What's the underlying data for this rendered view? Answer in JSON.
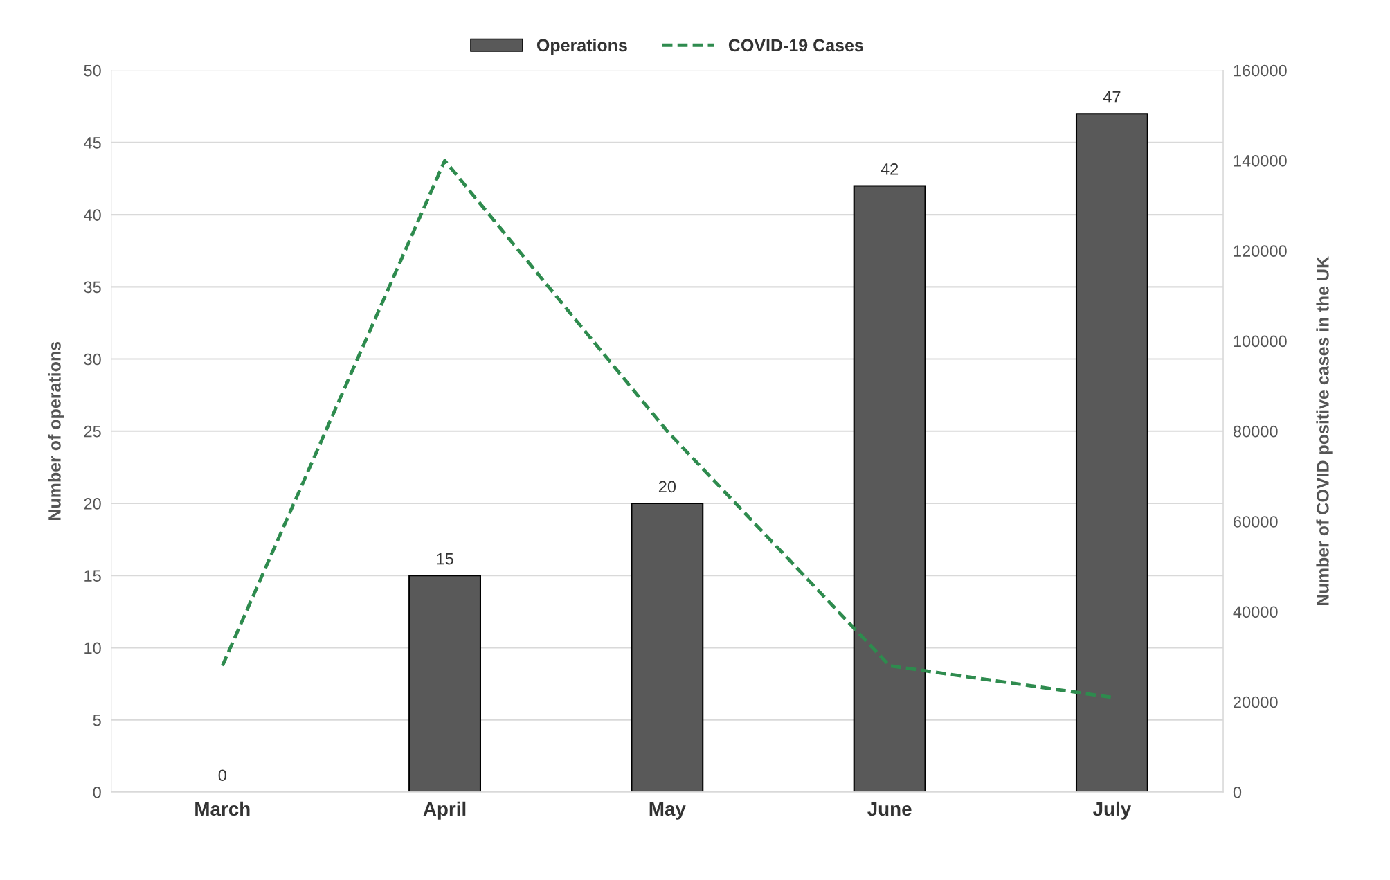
{
  "chart_data": {
    "type": "bar",
    "categories": [
      "March",
      "April",
      "May",
      "June",
      "July"
    ],
    "series": [
      {
        "name": "Operations",
        "color": "#595959",
        "values": [
          0,
          15,
          20,
          42,
          47
        ],
        "value_labels": [
          "0",
          "15",
          "20",
          "42",
          "47"
        ]
      },
      {
        "name": "COVID-19 Cases",
        "type": "line",
        "axis": "y2",
        "color": "#2e8b4e",
        "line_style": "dashed",
        "values": [
          28000,
          140000,
          80000,
          28000,
          21000
        ]
      }
    ],
    "ylabel": "Number of operations",
    "y2label": "Number of COVID positive cases in the UK",
    "ylim": [
      0,
      50
    ],
    "yticks": [
      0,
      5,
      10,
      15,
      20,
      25,
      30,
      35,
      40,
      45,
      50
    ],
    "y2lim": [
      0,
      160000
    ],
    "y2ticks": [
      0,
      20000,
      40000,
      60000,
      80000,
      100000,
      120000,
      140000,
      160000
    ],
    "grid": "y",
    "legend": "top"
  }
}
